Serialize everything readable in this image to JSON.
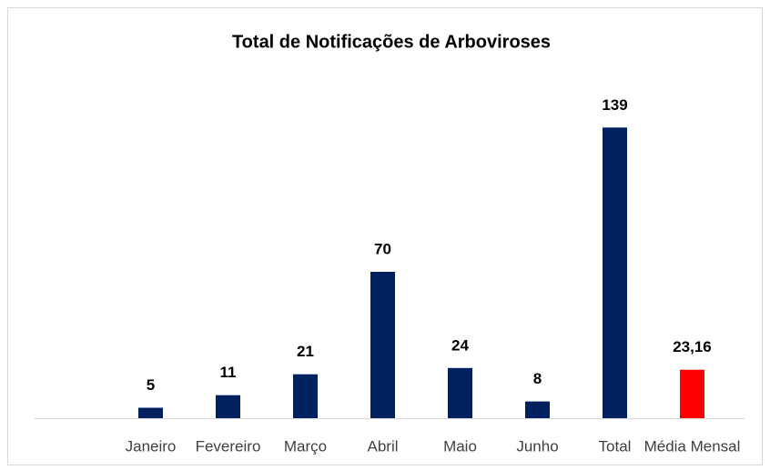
{
  "chart_data": {
    "type": "bar",
    "title": "Total de Notificações de Arboviroses",
    "categories": [
      null,
      "Janeiro",
      "Fevereiro",
      "Março",
      "Abril",
      "Maio",
      "Junho",
      "Total",
      "Média Mensal"
    ],
    "values": [
      null,
      5,
      11,
      21,
      70,
      24,
      8,
      139,
      23.16
    ],
    "value_labels": [
      null,
      "5",
      "11",
      "21",
      "70",
      "24",
      "8",
      "139",
      "23,16"
    ],
    "colors": [
      null,
      "#002060",
      "#002060",
      "#002060",
      "#002060",
      "#002060",
      "#002060",
      "#002060",
      "#ff0000"
    ],
    "ylim": [
      0,
      160
    ]
  }
}
